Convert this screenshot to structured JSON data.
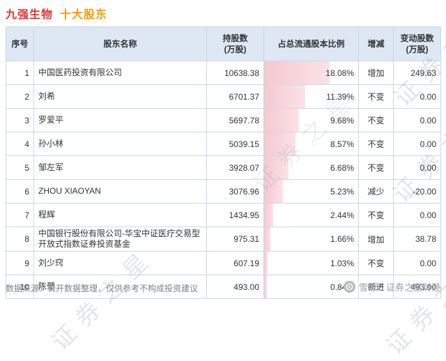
{
  "page": {
    "title": {
      "company": "九强生物",
      "suffix": "十大股东"
    },
    "source_note": "数据来源：公开数据整理，仅供参考不构成投资建议",
    "brand": {
      "site": "雪球",
      "sep": "：",
      "name": "证券之星财经"
    }
  },
  "watermark": {
    "text": "证券之星"
  },
  "colors": {
    "up": "#e60000",
    "down": "#009944",
    "flat": "#333333",
    "bar": "#f5c9d0",
    "header_bg": "#dde8f4",
    "border": "#c9d8eb",
    "title_company": "#e63333",
    "title_suffix": "#ff9900"
  },
  "chart_data": {
    "type": "table",
    "title": "九强生物 十大股东",
    "columns": [
      [
        "序号"
      ],
      [
        "股东名称"
      ],
      [
        "持股数",
        "(万股)"
      ],
      [
        "占总流通股本比例"
      ],
      [
        "增减"
      ],
      [
        "变动股数",
        "(万股)"
      ]
    ],
    "ratio_axis_max_pct": 18.08,
    "rows": [
      {
        "no": "1",
        "name": "中国医药投资有限公司",
        "shares": "10638.38",
        "ratio_pct": 18.08,
        "ratio": "18.08%",
        "change": "增加",
        "change_type": "up",
        "delta": "249.63",
        "delta_type": "up"
      },
      {
        "no": "2",
        "name": "刘希",
        "shares": "6701.37",
        "ratio_pct": 11.39,
        "ratio": "11.39%",
        "change": "不变",
        "change_type": "flat",
        "delta": "0.00",
        "delta_type": "flat"
      },
      {
        "no": "3",
        "name": "罗爱平",
        "shares": "5697.78",
        "ratio_pct": 9.68,
        "ratio": "9.68%",
        "change": "不变",
        "change_type": "flat",
        "delta": "0.00",
        "delta_type": "flat"
      },
      {
        "no": "4",
        "name": "孙小林",
        "shares": "5039.15",
        "ratio_pct": 8.57,
        "ratio": "8.57%",
        "change": "不变",
        "change_type": "flat",
        "delta": "0.00",
        "delta_type": "flat"
      },
      {
        "no": "5",
        "name": "邹左军",
        "shares": "3928.07",
        "ratio_pct": 6.68,
        "ratio": "6.68%",
        "change": "不变",
        "change_type": "flat",
        "delta": "0.00",
        "delta_type": "flat"
      },
      {
        "no": "6",
        "name": "ZHOU XIAOYAN",
        "shares": "3076.96",
        "ratio_pct": 5.23,
        "ratio": "5.23%",
        "change": "减少",
        "change_type": "down",
        "delta": "-20.00",
        "delta_type": "down"
      },
      {
        "no": "7",
        "name": "程辉",
        "shares": "1434.95",
        "ratio_pct": 2.44,
        "ratio": "2.44%",
        "change": "不变",
        "change_type": "flat",
        "delta": "0.00",
        "delta_type": "flat"
      },
      {
        "no": "8",
        "name": "中国银行股份有限公司-华宝中证医疗交易型开放式指数证券投资基金",
        "shares": "975.31",
        "ratio_pct": 1.66,
        "ratio": "1.66%",
        "change": "增加",
        "change_type": "up",
        "delta": "38.78",
        "delta_type": "up"
      },
      {
        "no": "9",
        "name": "刘少窍",
        "shares": "607.19",
        "ratio_pct": 1.03,
        "ratio": "1.03%",
        "change": "不变",
        "change_type": "flat",
        "delta": "0.00",
        "delta_type": "flat"
      },
      {
        "no": "10",
        "name": "陈翚",
        "shares": "493.00",
        "ratio_pct": 0.84,
        "ratio": "0.84%",
        "change": "新进",
        "change_type": "new",
        "delta": "493.00",
        "delta_type": "up"
      }
    ]
  }
}
